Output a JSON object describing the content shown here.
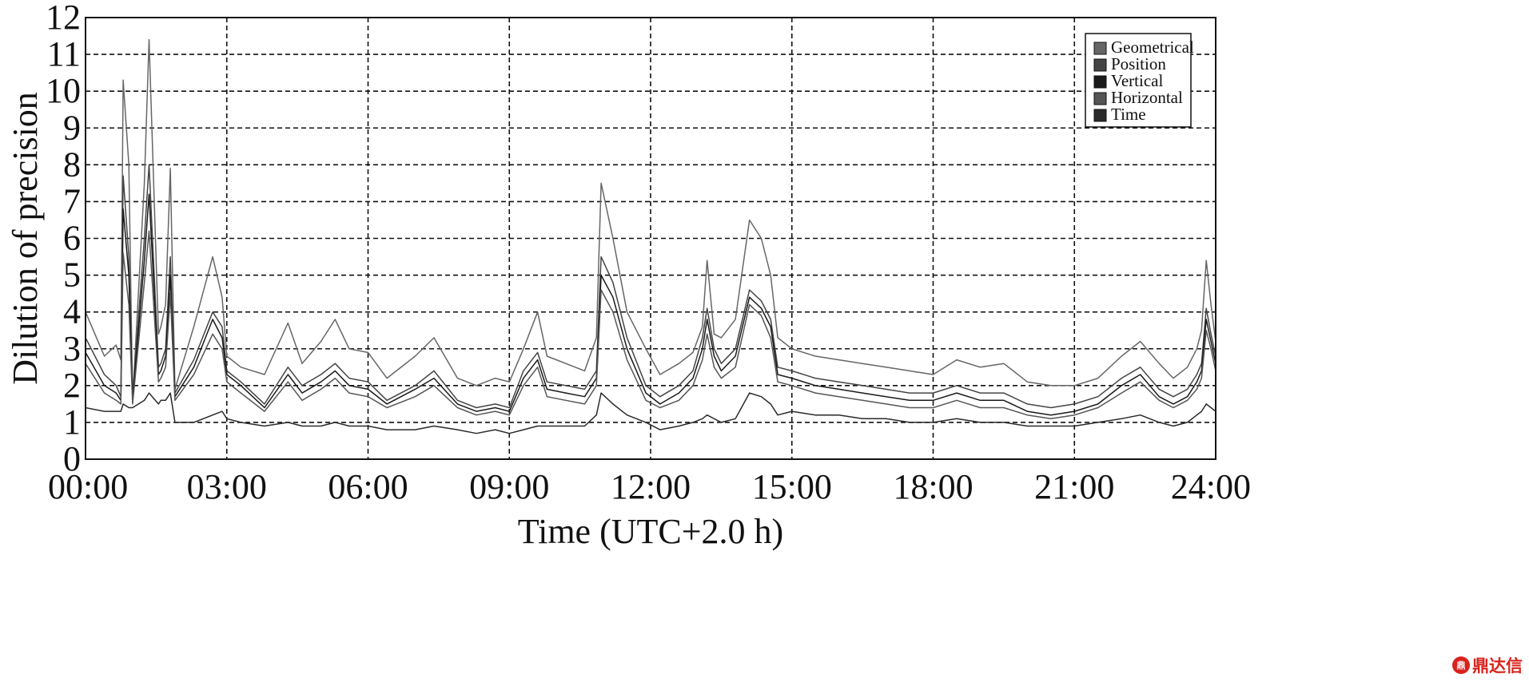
{
  "chart_data": {
    "type": "line",
    "title": "",
    "xlabel": "Time (UTC+2.0 h)",
    "ylabel": "Dilution of precision",
    "xlim": [
      0,
      24
    ],
    "ylim": [
      0,
      12
    ],
    "x_ticks": [
      "00:00",
      "03:00",
      "06:00",
      "09:00",
      "12:00",
      "15:00",
      "18:00",
      "21:00",
      "24:00"
    ],
    "y_ticks": [
      "0",
      "1",
      "2",
      "3",
      "4",
      "5",
      "6",
      "7",
      "8",
      "9",
      "10",
      "11",
      "12"
    ],
    "grid": true,
    "legend_position": "top-right",
    "x": [
      0.0,
      0.4,
      0.65,
      0.75,
      0.8,
      0.92,
      1.0,
      1.25,
      1.35,
      1.55,
      1.6,
      1.7,
      1.8,
      1.9,
      2.3,
      2.7,
      2.9,
      3.0,
      3.3,
      3.8,
      4.3,
      4.6,
      5.0,
      5.3,
      5.6,
      6.0,
      6.4,
      7.0,
      7.4,
      7.9,
      8.3,
      8.7,
      9.0,
      9.3,
      9.6,
      9.8,
      10.2,
      10.6,
      10.85,
      10.95,
      11.2,
      11.5,
      11.9,
      12.2,
      12.6,
      12.9,
      13.1,
      13.2,
      13.35,
      13.5,
      13.8,
      14.1,
      14.35,
      14.55,
      14.7,
      15.0,
      15.5,
      16.0,
      16.5,
      17.0,
      17.5,
      18.0,
      18.5,
      19.0,
      19.5,
      20.0,
      20.5,
      21.0,
      21.5,
      22.0,
      22.4,
      22.8,
      23.1,
      23.4,
      23.6,
      23.7,
      23.8,
      23.9,
      24.0
    ],
    "series": [
      {
        "name": "Geometrical",
        "values": [
          4.0,
          2.8,
          3.1,
          2.7,
          10.3,
          8.0,
          1.6,
          7.5,
          11.4,
          3.4,
          3.6,
          4.2,
          7.9,
          1.9,
          3.6,
          5.5,
          4.4,
          2.8,
          2.5,
          2.3,
          3.7,
          2.6,
          3.2,
          3.8,
          3.0,
          2.9,
          2.2,
          2.8,
          3.3,
          2.2,
          2.0,
          2.2,
          2.1,
          3.0,
          4.0,
          2.8,
          2.6,
          2.4,
          3.3,
          7.5,
          6.0,
          4.0,
          3.0,
          2.3,
          2.6,
          2.9,
          3.6,
          5.4,
          3.4,
          3.3,
          3.8,
          6.5,
          6.0,
          5.0,
          3.3,
          3.0,
          2.8,
          2.7,
          2.6,
          2.5,
          2.4,
          2.3,
          2.7,
          2.5,
          2.6,
          2.1,
          2.0,
          2.0,
          2.2,
          2.8,
          3.2,
          2.6,
          2.2,
          2.5,
          3.0,
          3.5,
          5.4,
          4.2,
          3.2
        ]
      },
      {
        "name": "Position",
        "values": [
          3.3,
          2.3,
          2.0,
          1.7,
          7.7,
          5.5,
          1.7,
          6.0,
          8.0,
          2.5,
          2.6,
          3.0,
          5.5,
          1.8,
          2.7,
          4.0,
          3.6,
          2.4,
          2.1,
          1.5,
          2.5,
          2.0,
          2.3,
          2.6,
          2.2,
          2.1,
          1.6,
          2.0,
          2.4,
          1.6,
          1.4,
          1.5,
          1.4,
          2.4,
          2.9,
          2.1,
          2.0,
          1.9,
          2.4,
          5.5,
          4.8,
          3.3,
          2.0,
          1.7,
          2.0,
          2.4,
          3.3,
          4.1,
          3.0,
          2.6,
          3.0,
          4.6,
          4.3,
          3.8,
          2.5,
          2.4,
          2.2,
          2.1,
          2.0,
          1.9,
          1.8,
          1.8,
          2.0,
          1.8,
          1.8,
          1.5,
          1.4,
          1.5,
          1.7,
          2.2,
          2.5,
          1.9,
          1.7,
          1.9,
          2.3,
          2.6,
          4.1,
          3.4,
          2.8
        ]
      },
      {
        "name": "Vertical",
        "values": [
          2.9,
          2.0,
          1.8,
          1.6,
          6.8,
          5.0,
          1.6,
          5.4,
          7.2,
          2.3,
          2.4,
          2.8,
          5.0,
          1.7,
          2.5,
          3.8,
          3.3,
          2.3,
          2.0,
          1.4,
          2.3,
          1.8,
          2.1,
          2.4,
          2.0,
          1.9,
          1.5,
          1.9,
          2.2,
          1.5,
          1.3,
          1.4,
          1.3,
          2.2,
          2.7,
          1.9,
          1.8,
          1.7,
          2.2,
          5.0,
          4.4,
          3.0,
          1.8,
          1.5,
          1.8,
          2.2,
          3.0,
          3.8,
          2.8,
          2.4,
          2.8,
          4.4,
          4.1,
          3.6,
          2.3,
          2.2,
          2.0,
          1.9,
          1.8,
          1.7,
          1.6,
          1.6,
          1.8,
          1.6,
          1.6,
          1.3,
          1.2,
          1.3,
          1.5,
          2.0,
          2.3,
          1.7,
          1.5,
          1.7,
          2.1,
          2.4,
          3.8,
          3.2,
          2.6
        ]
      },
      {
        "name": "Horizontal",
        "values": [
          2.6,
          1.8,
          1.6,
          1.5,
          5.6,
          4.2,
          1.5,
          4.8,
          6.2,
          2.1,
          2.2,
          2.5,
          4.5,
          1.6,
          2.3,
          3.4,
          3.0,
          2.1,
          1.8,
          1.3,
          2.1,
          1.6,
          1.9,
          2.2,
          1.8,
          1.7,
          1.4,
          1.7,
          2.0,
          1.4,
          1.2,
          1.3,
          1.2,
          2.0,
          2.5,
          1.7,
          1.6,
          1.5,
          2.0,
          4.6,
          4.0,
          2.7,
          1.6,
          1.4,
          1.6,
          2.0,
          2.7,
          3.4,
          2.5,
          2.2,
          2.5,
          4.2,
          3.9,
          3.3,
          2.1,
          2.0,
          1.8,
          1.7,
          1.6,
          1.5,
          1.4,
          1.4,
          1.6,
          1.4,
          1.4,
          1.2,
          1.1,
          1.2,
          1.4,
          1.8,
          2.1,
          1.6,
          1.4,
          1.6,
          1.9,
          2.2,
          3.5,
          3.0,
          2.4
        ]
      },
      {
        "name": "Time",
        "values": [
          1.4,
          1.3,
          1.3,
          1.3,
          1.5,
          1.4,
          1.4,
          1.6,
          1.8,
          1.5,
          1.6,
          1.6,
          1.8,
          1.0,
          1.0,
          1.2,
          1.3,
          1.1,
          1.0,
          0.9,
          1.0,
          0.9,
          0.9,
          1.0,
          0.9,
          0.9,
          0.8,
          0.8,
          0.9,
          0.8,
          0.7,
          0.8,
          0.7,
          0.8,
          0.9,
          0.9,
          0.9,
          0.9,
          1.2,
          1.8,
          1.5,
          1.2,
          1.0,
          0.8,
          0.9,
          1.0,
          1.1,
          1.2,
          1.1,
          1.0,
          1.1,
          1.8,
          1.7,
          1.5,
          1.2,
          1.3,
          1.2,
          1.2,
          1.1,
          1.1,
          1.0,
          1.0,
          1.1,
          1.0,
          1.0,
          0.9,
          0.9,
          0.9,
          1.0,
          1.1,
          1.2,
          1.0,
          0.9,
          1.0,
          1.2,
          1.3,
          1.5,
          1.4,
          1.3
        ]
      }
    ],
    "series_colors": [
      "#666666",
      "#444444",
      "#1a1a1a",
      "#555555",
      "#2a2a2a"
    ]
  },
  "watermark": {
    "logo": "鼎",
    "text": "鼎达信"
  }
}
